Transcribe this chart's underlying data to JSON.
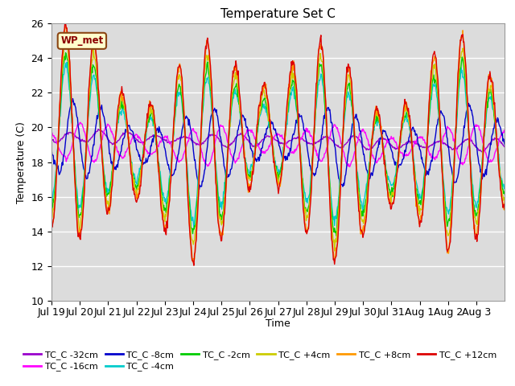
{
  "title": "Temperature Set C",
  "xlabel": "Time",
  "ylabel": "Temperature (C)",
  "ylim": [
    10,
    26
  ],
  "background_color": "#dcdcdc",
  "grid_color": "white",
  "wp_met_label": "WP_met",
  "colors": {
    "TC_C -32cm": "#9900cc",
    "TC_C -16cm": "#ff00ff",
    "TC_C -8cm": "#0000cc",
    "TC_C -4cm": "#00cccc",
    "TC_C -2cm": "#00cc00",
    "TC_C +4cm": "#cccc00",
    "TC_C +8cm": "#ff9900",
    "TC_C +12cm": "#dd0000"
  },
  "xtick_labels": [
    "Jul 19",
    "Jul 20",
    "Jul 21",
    "Jul 22",
    "Jul 23",
    "Jul 24",
    "Jul 25",
    "Jul 26",
    "Jul 27",
    "Jul 28",
    "Jul 29",
    "Jul 30",
    "Jul 31",
    "Aug 1",
    "Aug 2",
    "Aug 3"
  ],
  "ytick_labels": [
    10,
    12,
    14,
    16,
    18,
    20,
    22,
    24,
    26
  ]
}
